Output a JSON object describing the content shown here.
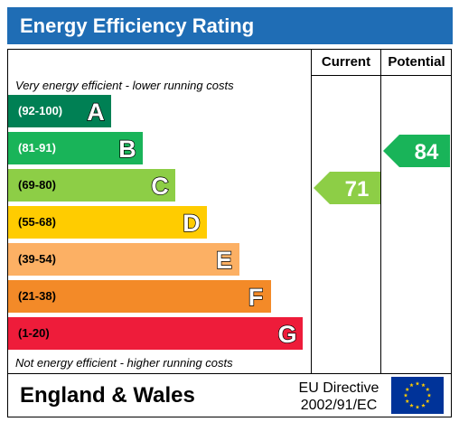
{
  "title": "Energy Efficiency Rating",
  "columns": {
    "current": "Current",
    "potential": "Potential"
  },
  "notes": {
    "top": "Very energy efficient - lower running costs",
    "bottom": "Not energy efficient - higher running costs"
  },
  "footer": {
    "region": "England & Wales",
    "directive_line1": "EU Directive",
    "directive_line2": "2002/91/EC",
    "flag_icon": "eu-flag-icon"
  },
  "chart_data": {
    "type": "bar",
    "title": "Energy Efficiency Rating",
    "categories": [
      "A",
      "B",
      "C",
      "D",
      "E",
      "F",
      "G"
    ],
    "bands": [
      {
        "letter": "A",
        "range": "(92-100)",
        "min": 92,
        "max": 100,
        "color": "#008054",
        "text_color": "#ffffff"
      },
      {
        "letter": "B",
        "range": "(81-91)",
        "min": 81,
        "max": 91,
        "color": "#19b459",
        "text_color": "#ffffff"
      },
      {
        "letter": "C",
        "range": "(69-80)",
        "min": 69,
        "max": 80,
        "color": "#8dce46",
        "text_color": "#000000"
      },
      {
        "letter": "D",
        "range": "(55-68)",
        "min": 55,
        "max": 68,
        "color": "#ffcc00",
        "text_color": "#000000"
      },
      {
        "letter": "E",
        "range": "(39-54)",
        "min": 39,
        "max": 54,
        "color": "#fcb064",
        "text_color": "#000000"
      },
      {
        "letter": "F",
        "range": "(21-38)",
        "min": 21,
        "max": 38,
        "color": "#f38a28",
        "text_color": "#000000"
      },
      {
        "letter": "G",
        "range": "(1-20)",
        "min": 1,
        "max": 20,
        "color": "#ee1c3a",
        "text_color": "#000000"
      }
    ],
    "series": [
      {
        "name": "Current",
        "value": 71,
        "band": "C",
        "color": "#8dce46"
      },
      {
        "name": "Potential",
        "value": 84,
        "band": "B",
        "color": "#19b459"
      }
    ]
  }
}
